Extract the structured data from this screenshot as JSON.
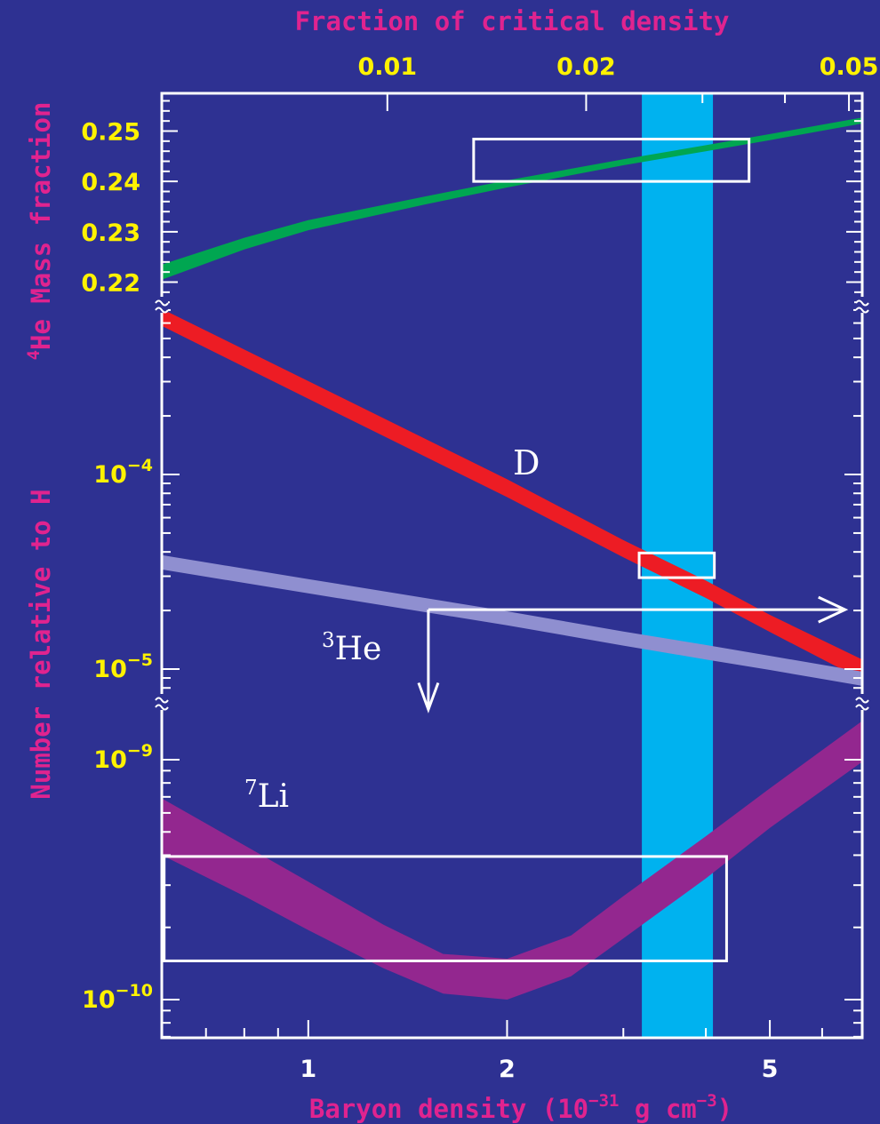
{
  "colors": {
    "background": "#2e3192",
    "label_magenta": "#e0238f",
    "tick_yellow": "#fff200",
    "frame": "#ffffff",
    "he4": "#00a651",
    "deuterium": "#ed1c24",
    "he3": "#8f8fd0",
    "li7": "#93278f",
    "concordance_band": "#00b2ef"
  },
  "chart_data": {
    "type": "line",
    "top_axis": {
      "title": "Fraction of critical density",
      "ticks": [
        {
          "value": 0.01,
          "label": "0.01"
        },
        {
          "value": 0.02,
          "label": "0.02"
        },
        {
          "value": 0.05,
          "label": "0.05"
        }
      ]
    },
    "x_axis": {
      "title_main": "Baryon density (10",
      "title_exp1": "−31",
      "title_mid": " g cm",
      "title_exp2": "−3",
      "title_end": ")",
      "scale": "log",
      "range": [
        0.6,
        6.9
      ],
      "ticks": [
        {
          "value": 1,
          "label": "1"
        },
        {
          "value": 2,
          "label": "2"
        },
        {
          "value": 5,
          "label": "5"
        }
      ]
    },
    "y_axis_he4": {
      "title_sup": "4",
      "title": "He Mass fraction",
      "range": [
        0.2155,
        0.2575
      ],
      "ticks": [
        {
          "value": 0.25,
          "label": "0.25"
        },
        {
          "value": 0.24,
          "label": "0.24"
        },
        {
          "value": 0.23,
          "label": "0.23"
        },
        {
          "value": 0.22,
          "label": "0.22"
        }
      ]
    },
    "y_axis_number": {
      "title": "Number relative to H",
      "ticks_upper": [
        {
          "value": 0.0001,
          "base": "10",
          "exp": "−4"
        },
        {
          "value": 1e-05,
          "base": "10",
          "exp": "−5"
        }
      ],
      "ticks_lower": [
        {
          "value": 1e-09,
          "base": "10",
          "exp": "−9"
        },
        {
          "value": 1e-10,
          "base": "10",
          "exp": "−10"
        }
      ]
    },
    "concordance_band": {
      "x_range": [
        3.2,
        4.1
      ]
    },
    "series": [
      {
        "key": "he4",
        "label_sup": "",
        "label": "",
        "x": [
          0.6,
          0.8,
          1.0,
          1.5,
          2.0,
          3.0,
          4.0,
          5.0,
          6.9
        ],
        "low": [
          0.2205,
          0.2265,
          0.2303,
          0.2354,
          0.2388,
          0.2432,
          0.246,
          0.2482,
          0.2515
        ],
        "high": [
          0.2235,
          0.2288,
          0.2323,
          0.237,
          0.2402,
          0.2444,
          0.2472,
          0.2494,
          0.2527
        ]
      },
      {
        "key": "deuterium",
        "label_sup": "",
        "label": "D",
        "x": [
          0.6,
          1.0,
          2.0,
          3.0,
          4.0,
          5.0,
          6.9
        ],
        "low": [
          0.00058,
          0.000245,
          7.65e-05,
          3.75e-05,
          2.32e-05,
          1.55e-05,
          8.8e-06
        ],
        "high": [
          0.00071,
          0.000302,
          9.45e-05,
          4.6e-05,
          2.85e-05,
          1.9e-05,
          1.12e-05
        ]
      },
      {
        "key": "he3",
        "label_sup": "3",
        "label": "He",
        "x": [
          0.6,
          1.0,
          2.0,
          3.0,
          4.0,
          5.0,
          6.9
        ],
        "low": [
          3.25e-05,
          2.45e-05,
          1.68e-05,
          1.32e-05,
          1.12e-05,
          9.9e-06,
          8.2e-06
        ],
        "high": [
          3.85e-05,
          2.9e-05,
          1.98e-05,
          1.56e-05,
          1.33e-05,
          1.17e-05,
          9.7e-06
        ]
      },
      {
        "key": "li7",
        "label_sup": "7",
        "label": "Li",
        "x": [
          0.6,
          0.8,
          1.0,
          1.3,
          1.6,
          2.0,
          2.5,
          3.0,
          4.0,
          5.0,
          6.9
        ],
        "low": [
          4e-10,
          2.7e-10,
          1.95e-10,
          1.35e-10,
          1.06e-10,
          1e-10,
          1.25e-10,
          1.8e-10,
          3.2e-10,
          5.2e-10,
          9.8e-10
        ],
        "high": [
          6.9e-10,
          4.4e-10,
          3.1e-10,
          2.05e-10,
          1.55e-10,
          1.48e-10,
          1.85e-10,
          2.7e-10,
          4.8e-10,
          7.6e-10,
          1.45e-09
        ]
      }
    ],
    "observation_boxes": [
      {
        "key": "he4",
        "x_range": [
          1.78,
          4.65
        ],
        "y_range": [
          0.24,
          0.2484
        ]
      },
      {
        "key": "deuterium",
        "x_range": [
          3.17,
          4.12
        ],
        "y_range": [
          2.95e-05,
          3.95e-05
        ]
      },
      {
        "key": "li7",
        "x_range": [
          0.605,
          4.3
        ],
        "y_range": [
          1.45e-10,
          3.95e-10
        ]
      }
    ],
    "he3_limit": {
      "x_range": [
        1.52,
        6.5
      ],
      "y": 2.02e-05,
      "arrow_tip_y": 6.2e-06
    }
  }
}
